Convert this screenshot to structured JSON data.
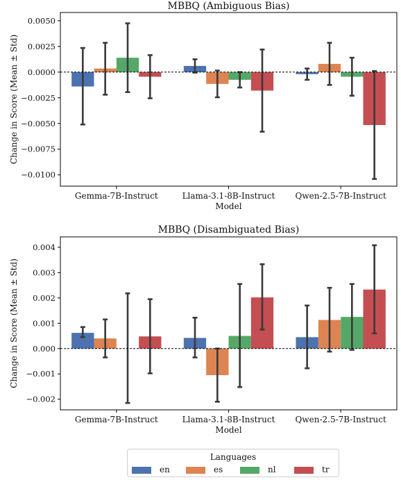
{
  "chart_data": [
    {
      "type": "bar",
      "title": "MBBQ (Ambiguous Bias)",
      "xlabel": "Model",
      "ylabel": "Change in Score (Mean ± Std)",
      "categories": [
        "Gemma-7B-Instruct",
        "Llama-3.1-8B-Instruct",
        "Qwen-2.5-7B-Instruct"
      ],
      "ylim": [
        -0.0111,
        0.0058
      ],
      "yticks": [
        0.005,
        0.0025,
        0.0,
        -0.0025,
        -0.005,
        -0.0075,
        -0.01
      ],
      "ytick_labels": [
        "0.0050",
        "0.0025",
        "0.0000",
        "−0.0025",
        "−0.0050",
        "−0.0075",
        "−0.0100"
      ],
      "zero_line": true,
      "series": [
        {
          "name": "en",
          "color": "#4c72b0",
          "values": [
            -0.0014,
            0.0006,
            -0.0002
          ],
          "err_low": [
            -0.0051,
            -5e-05,
            -0.00075
          ],
          "err_high": [
            0.00235,
            0.00125,
            0.00035
          ]
        },
        {
          "name": "es",
          "color": "#dd8452",
          "values": [
            0.00035,
            -0.00115,
            0.0008
          ],
          "err_low": [
            -0.0022,
            -0.00245,
            -0.00125
          ],
          "err_high": [
            0.00285,
            0.00015,
            0.00285
          ]
        },
        {
          "name": "nl",
          "color": "#55a868",
          "values": [
            0.0014,
            -0.00075,
            -0.00045
          ],
          "err_low": [
            -0.00195,
            -0.0015,
            -0.0023
          ],
          "err_high": [
            0.00475,
            0.0,
            0.0014
          ]
        },
        {
          "name": "tr",
          "color": "#c44e52",
          "values": [
            -0.00045,
            -0.0018,
            -0.00515
          ],
          "err_low": [
            -0.00255,
            -0.0058,
            -0.0104
          ],
          "err_high": [
            0.00165,
            0.0022,
            0.0001
          ]
        }
      ]
    },
    {
      "type": "bar",
      "title": "MBBQ (Disambiguated Bias)",
      "xlabel": "Model",
      "ylabel": "Change in Score (Mean ± Std)",
      "categories": [
        "Gemma-7B-Instruct",
        "Llama-3.1-8B-Instruct",
        "Qwen-2.5-7B-Instruct"
      ],
      "ylim": [
        -0.00242,
        0.00441
      ],
      "yticks": [
        0.004,
        0.003,
        0.002,
        0.001,
        0.0,
        -0.001,
        -0.002
      ],
      "ytick_labels": [
        "0.004",
        "0.003",
        "0.002",
        "0.001",
        "0.000",
        "−0.001",
        "−0.002"
      ],
      "zero_line": true,
      "series": [
        {
          "name": "en",
          "color": "#4c72b0",
          "values": [
            0.00062,
            0.00042,
            0.00045
          ],
          "err_low": [
            0.00045,
            -0.00035,
            -0.00078
          ],
          "err_high": [
            0.00085,
            0.00122,
            0.0017
          ]
        },
        {
          "name": "es",
          "color": "#dd8452",
          "values": [
            0.0004,
            -0.00105,
            0.00113
          ],
          "err_low": [
            -0.00035,
            -0.0021,
            -0.00012
          ],
          "err_high": [
            0.00115,
            0.0,
            0.0024
          ]
        },
        {
          "name": "nl",
          "color": "#55a868",
          "values": [
            0.0,
            0.0005,
            0.00125
          ],
          "err_low": [
            -0.00215,
            -0.00152,
            -5e-05
          ],
          "err_high": [
            0.00218,
            0.00255,
            0.00255
          ]
        },
        {
          "name": "tr",
          "color": "#c44e52",
          "values": [
            0.00048,
            0.00202,
            0.00233
          ],
          "err_low": [
            -0.00098,
            0.00075,
            0.0006
          ],
          "err_high": [
            0.00195,
            0.00333,
            0.00408
          ]
        }
      ]
    }
  ],
  "legend": {
    "title": "Languages",
    "placement": "bottom-center",
    "items": [
      {
        "label": "en",
        "color": "#4c72b0"
      },
      {
        "label": "es",
        "color": "#dd8452"
      },
      {
        "label": "nl",
        "color": "#55a868"
      },
      {
        "label": "tr",
        "color": "#c44e52"
      }
    ]
  }
}
